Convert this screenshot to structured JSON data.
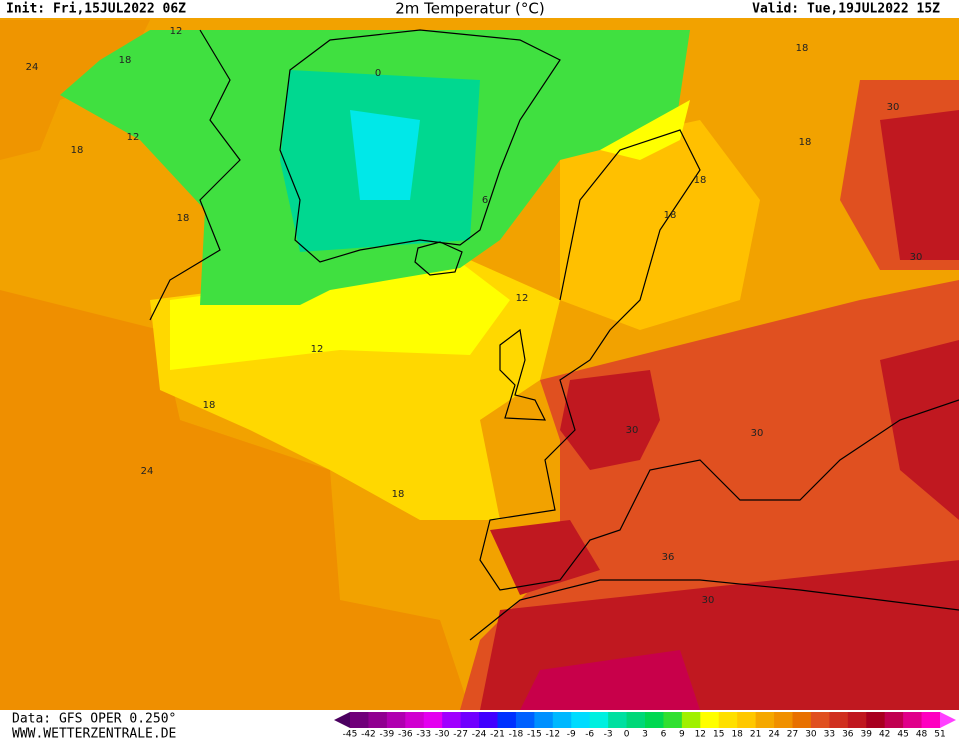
{
  "header": {
    "init": "Init: Fri,15JUL2022 06Z",
    "title": "2m Temperatur (°C)",
    "valid": "Valid: Tue,19JUL2022 15Z"
  },
  "footer": {
    "data": "Data: GFS OPER 0.250°",
    "site": "WWW.WETTERZENTRALE.DE"
  },
  "legend": {
    "levels": [
      -45,
      -42,
      -39,
      -36,
      -33,
      -30,
      -27,
      -24,
      -21,
      -18,
      -15,
      -12,
      -9,
      -6,
      -3,
      0,
      3,
      6,
      9,
      12,
      15,
      18,
      21,
      24,
      27,
      30,
      33,
      36,
      39,
      42,
      45,
      48,
      51
    ],
    "colors": [
      "#4b0060",
      "#70007a",
      "#900090",
      "#b000b0",
      "#d000d0",
      "#e400f0",
      "#a000ff",
      "#7000ff",
      "#4000ff",
      "#0030ff",
      "#0060ff",
      "#0090ff",
      "#00b8ff",
      "#00dcff",
      "#00f0e0",
      "#00e0a0",
      "#00d878",
      "#00d850",
      "#30e030",
      "#a0f000",
      "#ffff00",
      "#ffe000",
      "#ffc800",
      "#f5a800",
      "#f09000",
      "#e87000",
      "#e05020",
      "#d03020",
      "#c01820",
      "#a80020",
      "#c00050",
      "#e0008a",
      "#ff00c0",
      "#ff40ff"
    ]
  },
  "contour_labels": [
    "12",
    "24",
    "18",
    "18",
    "12",
    "18",
    "0",
    "6",
    "18",
    "18",
    "30",
    "18",
    "18",
    "30",
    "12",
    "12",
    "18",
    "24",
    "18",
    "30",
    "30",
    "30",
    "36"
  ]
}
